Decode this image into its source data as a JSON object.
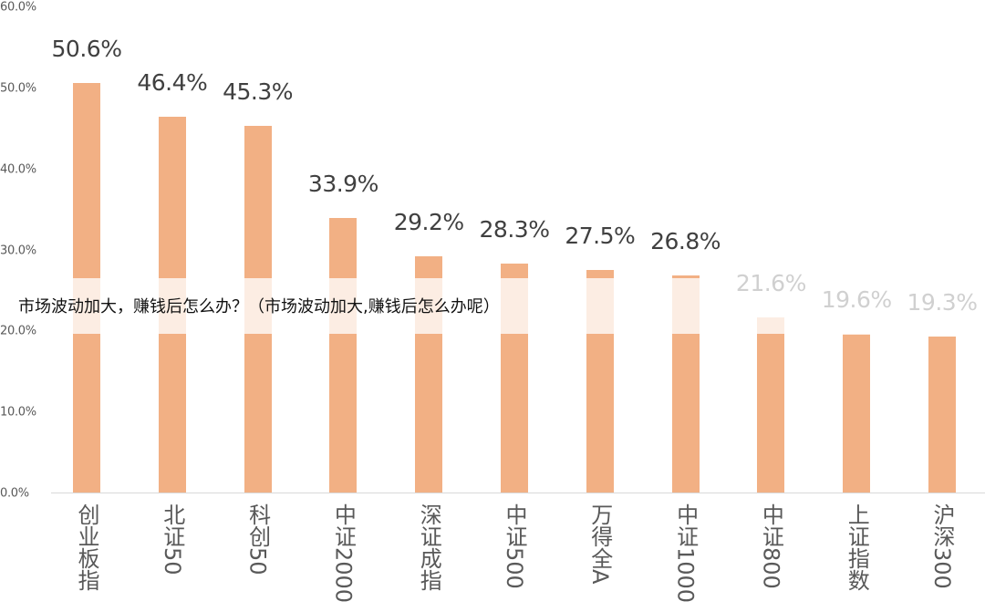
{
  "chart_data": {
    "type": "bar",
    "title": "",
    "xlabel": "",
    "ylabel": "",
    "ylim": [
      0,
      60
    ],
    "yticks": [
      "0.0%",
      "10.0%",
      "20.0%",
      "30.0%",
      "40.0%",
      "50.0%",
      "60.0%"
    ],
    "grid": false,
    "legend": null,
    "bar_color": "#f2b084",
    "categories": [
      "创业板指",
      "北证50",
      "科创50",
      "中证2000",
      "深证成指",
      "中证500",
      "万得全A",
      "中证1000",
      "中证800",
      "上证指数",
      "沪深300"
    ],
    "values": [
      50.6,
      46.4,
      45.3,
      33.9,
      29.2,
      28.3,
      27.5,
      26.8,
      21.6,
      19.6,
      19.3
    ],
    "value_labels": [
      "50.6%",
      "46.4%",
      "45.3%",
      "33.9%",
      "29.2%",
      "28.3%",
      "27.5%",
      "26.8%",
      "21.6%",
      "19.6%",
      "19.3%"
    ],
    "annotations": [
      "市场波动加大，赚钱后怎么办？（市场波动加大,赚钱后怎么办呢）"
    ]
  },
  "overlay": {
    "banner_text": "市场波动加大，赚钱后怎么办？（市场波动加大,赚钱后怎么办呢）",
    "band_color": "#fcede3"
  }
}
